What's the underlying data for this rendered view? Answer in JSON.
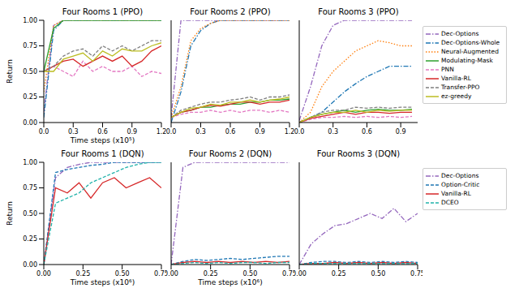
{
  "chart_data": [
    {
      "type": "line",
      "title": "Four Rooms 1 (PPO)",
      "x_label": "Time steps (x10⁵)",
      "y_label": "Return",
      "x": [
        0,
        0.1,
        0.2,
        0.3,
        0.4,
        0.5,
        0.6,
        0.7,
        0.8,
        0.9,
        1.0,
        1.1,
        1.2
      ],
      "xlim": [
        0,
        1.2
      ],
      "xticks": [
        {
          "value": 0,
          "label": "0.0"
        },
        0.3,
        0.6,
        0.9,
        1.2
      ],
      "ylim": [
        0,
        1
      ],
      "yticks": [
        {
          "value": 0,
          "label": "0.00"
        },
        0.25,
        {
          "value": 0.5,
          "label": "0.50"
        },
        0.75,
        {
          "value": 1,
          "label": "1.00"
        }
      ],
      "series": [
        {
          "name": "Dec-Options",
          "color": "#9467bd",
          "line_style": "dashdot",
          "values": [
            0.1,
            0.95,
            1,
            1,
            1,
            1,
            1,
            1,
            1,
            1,
            1,
            1,
            1
          ]
        },
        {
          "name": "Dec-Options-Whole",
          "color": "#1f77b4",
          "line_style": "dashdot",
          "values": [
            0.05,
            0.9,
            1,
            1,
            1,
            1,
            1,
            1,
            1,
            1,
            1,
            1,
            1
          ]
        },
        {
          "name": "Neural-Augmented",
          "color": "#ff7f0e",
          "line_style": "dotted",
          "values": [
            0.3,
            0.95,
            1,
            1,
            1,
            1,
            1,
            1,
            1,
            1,
            1,
            1,
            1
          ]
        },
        {
          "name": "Modulating-Mask",
          "color": "#2ca02c",
          "line_style": "solid",
          "values": [
            0.5,
            0.92,
            1,
            1,
            1,
            1,
            1,
            1,
            1,
            1,
            1,
            1,
            1
          ]
        },
        {
          "name": "PNN",
          "color": "#e377c2",
          "line_style": "dashed",
          "values": [
            0.5,
            0.55,
            0.5,
            0.45,
            0.6,
            0.5,
            0.55,
            0.5,
            0.5,
            0.55,
            0.45,
            0.5,
            0.48
          ]
        },
        {
          "name": "Vanilla-RL",
          "color": "#d62728",
          "line_style": "solid",
          "values": [
            0.5,
            0.55,
            0.6,
            0.62,
            0.55,
            0.6,
            0.65,
            0.6,
            0.65,
            0.55,
            0.6,
            0.7,
            0.75
          ]
        },
        {
          "name": "Transfer-PPO",
          "color": "#7f7f7f",
          "line_style": "dashed",
          "values": [
            0.5,
            0.55,
            0.65,
            0.7,
            0.72,
            0.65,
            0.75,
            0.7,
            0.75,
            0.7,
            0.75,
            0.8,
            0.8
          ]
        },
        {
          "name": "ez-greedy",
          "color": "#bcbd22",
          "line_style": "solid",
          "values": [
            0.5,
            0.5,
            0.62,
            0.65,
            0.68,
            0.6,
            0.7,
            0.65,
            0.72,
            0.7,
            0.7,
            0.75,
            0.78
          ]
        }
      ]
    },
    {
      "type": "line",
      "title": "Four Rooms 2 (PPO)",
      "tick_labels": "x",
      "x": [
        0,
        0.1,
        0.2,
        0.3,
        0.4,
        0.5,
        0.6,
        0.7,
        0.8,
        0.9,
        1.0,
        1.1,
        1.2
      ],
      "xlim": [
        0,
        1.2
      ],
      "xticks": [
        {
          "value": 0,
          "label": "0.0"
        },
        0.3,
        0.6,
        0.9,
        1.2
      ],
      "ylim": [
        0,
        1
      ],
      "yticks": [
        0,
        0.25,
        0.5,
        0.75,
        1
      ],
      "series": [
        {
          "name": "Dec-Options",
          "color": "#9467bd",
          "line_style": "dashdot",
          "values": [
            0.05,
            1,
            1,
            1,
            1,
            1,
            1,
            1,
            1,
            1,
            1,
            1,
            1
          ]
        },
        {
          "name": "Dec-Options-Whole",
          "color": "#1f77b4",
          "line_style": "dashdot",
          "values": [
            0,
            0.3,
            0.75,
            0.9,
            0.97,
            1,
            1,
            1,
            1,
            1,
            1,
            1,
            1
          ]
        },
        {
          "name": "Neural-Augmented",
          "color": "#ff7f0e",
          "line_style": "dotted",
          "values": [
            0.05,
            0.35,
            0.8,
            0.92,
            0.97,
            1,
            1,
            1,
            1,
            1,
            1,
            1,
            1
          ]
        },
        {
          "name": "Modulating-Mask",
          "color": "#2ca02c",
          "line_style": "solid",
          "values": [
            0.05,
            0.1,
            0.12,
            0.15,
            0.15,
            0.17,
            0.18,
            0.18,
            0.2,
            0.2,
            0.22,
            0.22,
            0.23
          ]
        },
        {
          "name": "PNN",
          "color": "#e377c2",
          "line_style": "dashed",
          "values": [
            0.05,
            0.08,
            0.1,
            0.1,
            0.12,
            0.1,
            0.12,
            0.1,
            0.12,
            0.12,
            0.1,
            0.12,
            0.1
          ]
        },
        {
          "name": "Vanilla-RL",
          "color": "#d62728",
          "line_style": "solid",
          "values": [
            0.05,
            0.1,
            0.12,
            0.15,
            0.17,
            0.16,
            0.18,
            0.2,
            0.2,
            0.18,
            0.2,
            0.2,
            0.22
          ]
        },
        {
          "name": "Transfer-PPO",
          "color": "#7f7f7f",
          "line_style": "dashed",
          "values": [
            0.05,
            0.12,
            0.15,
            0.18,
            0.2,
            0.2,
            0.22,
            0.23,
            0.25,
            0.22,
            0.25,
            0.25,
            0.27
          ]
        },
        {
          "name": "ez-greedy",
          "color": "#bcbd22",
          "line_style": "solid",
          "values": [
            0.05,
            0.1,
            0.14,
            0.15,
            0.18,
            0.17,
            0.2,
            0.2,
            0.22,
            0.2,
            0.22,
            0.23,
            0.25
          ]
        }
      ]
    },
    {
      "type": "line",
      "title": "Four Rooms 3 (PPO)",
      "tick_labels": "x",
      "legend": "right",
      "x": [
        0,
        0.1,
        0.2,
        0.3,
        0.4,
        0.5,
        0.6,
        0.7,
        0.8,
        0.9,
        1.0
      ],
      "xlim": [
        0,
        1.05
      ],
      "xticks": [
        {
          "value": 0,
          "label": "0.0"
        },
        0.3,
        0.6,
        0.9
      ],
      "ylim": [
        0,
        1
      ],
      "yticks": [
        0,
        0.25,
        0.5,
        0.75,
        1
      ],
      "series": [
        {
          "name": "Dec-Options",
          "color": "#9467bd",
          "line_style": "dashdot",
          "values": [
            0.02,
            0.35,
            0.75,
            0.95,
            1,
            1,
            1,
            1,
            1,
            1,
            1
          ]
        },
        {
          "name": "Dec-Options-Whole",
          "color": "#1f77b4",
          "line_style": "dashdot",
          "values": [
            0,
            0.05,
            0.1,
            0.2,
            0.3,
            0.38,
            0.45,
            0.5,
            0.55,
            0.55,
            0.55
          ]
        },
        {
          "name": "Neural-Augmented",
          "color": "#ff7f0e",
          "line_style": "dotted",
          "values": [
            0,
            0.1,
            0.35,
            0.5,
            0.6,
            0.7,
            0.75,
            0.8,
            0.78,
            0.75,
            0.75
          ]
        },
        {
          "name": "Modulating-Mask",
          "color": "#2ca02c",
          "line_style": "solid",
          "values": [
            0,
            0.05,
            0.08,
            0.1,
            0.12,
            0.1,
            0.12,
            0.13,
            0.12,
            0.12,
            0.13
          ]
        },
        {
          "name": "PNN",
          "color": "#e377c2",
          "line_style": "dashed",
          "values": [
            0,
            0.03,
            0.05,
            0.05,
            0.06,
            0.05,
            0.06,
            0.05,
            0.06,
            0.05,
            0.06
          ]
        },
        {
          "name": "Vanilla-RL",
          "color": "#d62728",
          "line_style": "solid",
          "values": [
            0,
            0.04,
            0.06,
            0.08,
            0.1,
            0.08,
            0.1,
            0.1,
            0.09,
            0.1,
            0.1
          ]
        },
        {
          "name": "Transfer-PPO",
          "color": "#7f7f7f",
          "line_style": "dashed",
          "values": [
            0,
            0.05,
            0.1,
            0.12,
            0.12,
            0.15,
            0.14,
            0.15,
            0.14,
            0.15,
            0.15
          ]
        },
        {
          "name": "ez-greedy",
          "color": "#bcbd22",
          "line_style": "solid",
          "values": [
            0,
            0.05,
            0.08,
            0.1,
            0.1,
            0.12,
            0.1,
            0.12,
            0.11,
            0.12,
            0.12
          ]
        }
      ]
    },
    {
      "type": "line",
      "title": "Four Rooms 1 (DQN)",
      "x_label": "Time steps (x10⁶)",
      "y_label": "Return",
      "x": [
        0,
        0.075,
        0.15,
        0.225,
        0.3,
        0.375,
        0.45,
        0.525,
        0.6,
        0.675,
        0.75
      ],
      "xlim": [
        0,
        0.75
      ],
      "xticks": [
        {
          "value": 0,
          "label": "0.00"
        },
        0.25,
        {
          "value": 0.5,
          "label": "0.50"
        },
        0.75
      ],
      "ylim": [
        0,
        1
      ],
      "yticks": [
        {
          "value": 0,
          "label": "0.00"
        },
        0.25,
        {
          "value": 0.5,
          "label": "0.50"
        },
        0.75,
        {
          "value": 1,
          "label": "1.00"
        }
      ],
      "series": [
        {
          "name": "Dec-Options",
          "color": "#9467bd",
          "line_style": "dashdot",
          "values": [
            0,
            0.85,
            0.95,
            0.98,
            1,
            1,
            1,
            1,
            1,
            1,
            1
          ]
        },
        {
          "name": "Option-Critic",
          "color": "#1f77b4",
          "line_style": "dashed",
          "values": [
            0,
            0.9,
            0.93,
            0.95,
            0.97,
            0.98,
            1,
            1,
            1,
            1,
            1
          ]
        },
        {
          "name": "Vanilla-RL",
          "color": "#d62728",
          "line_style": "solid",
          "values": [
            0,
            0.75,
            0.7,
            0.8,
            0.65,
            0.8,
            0.85,
            0.75,
            0.8,
            0.85,
            0.75
          ]
        },
        {
          "name": "DCEO",
          "color": "#20b2aa",
          "line_style": "dashed",
          "values": [
            0,
            0.6,
            0.65,
            0.7,
            0.8,
            0.85,
            0.9,
            0.95,
            0.98,
            1,
            1
          ]
        }
      ]
    },
    {
      "type": "line",
      "title": "Four Rooms 2 (DQN)",
      "x_label": "Time steps (x10⁶)",
      "tick_labels": "x",
      "x": [
        0,
        0.075,
        0.15,
        0.225,
        0.3,
        0.375,
        0.45,
        0.525,
        0.6,
        0.675,
        0.75
      ],
      "xlim": [
        0,
        0.75
      ],
      "xticks": [
        {
          "value": 0,
          "label": "0.00"
        },
        0.25,
        {
          "value": 0.5,
          "label": "0.50"
        },
        0.75
      ],
      "ylim": [
        0,
        1
      ],
      "yticks": [
        0,
        0.25,
        0.5,
        0.75,
        1
      ],
      "series": [
        {
          "name": "Dec-Options",
          "color": "#9467bd",
          "line_style": "dashdot",
          "values": [
            0,
            0.95,
            1,
            1,
            1,
            1,
            1,
            1,
            1,
            1,
            1
          ]
        },
        {
          "name": "Option-Critic",
          "color": "#1f77b4",
          "line_style": "dashed",
          "values": [
            0,
            0.03,
            0.05,
            0.04,
            0.05,
            0.06,
            0.05,
            0.06,
            0.07,
            0.08,
            0.08
          ]
        },
        {
          "name": "Vanilla-RL",
          "color": "#d62728",
          "line_style": "solid",
          "values": [
            0,
            0.02,
            0.03,
            0.02,
            0.03,
            0.02,
            0.03,
            0.02,
            0.03,
            0.02,
            0.03
          ]
        },
        {
          "name": "DCEO",
          "color": "#20b2aa",
          "line_style": "dashed",
          "values": [
            0,
            0.01,
            0.02,
            0.01,
            0.02,
            0.01,
            0.02,
            0.02,
            0.01,
            0.02,
            0.02
          ]
        }
      ]
    },
    {
      "type": "line",
      "title": "Four Rooms 3 (DQN)",
      "tick_labels": "x",
      "legend": "right",
      "x": [
        0,
        0.075,
        0.15,
        0.225,
        0.3,
        0.375,
        0.45,
        0.525,
        0.6,
        0.675,
        0.75
      ],
      "xlim": [
        0,
        0.75
      ],
      "xticks": [
        {
          "value": 0,
          "label": "0.00"
        },
        0.25,
        {
          "value": 0.5,
          "label": "0.50"
        },
        0.75
      ],
      "ylim": [
        0,
        1
      ],
      "yticks": [
        0,
        0.25,
        0.5,
        0.75,
        1
      ],
      "series": [
        {
          "name": "Dec-Options",
          "color": "#9467bd",
          "line_style": "dashdot",
          "values": [
            0,
            0.2,
            0.3,
            0.38,
            0.4,
            0.45,
            0.5,
            0.45,
            0.55,
            0.42,
            0.5
          ]
        },
        {
          "name": "Option-Critic",
          "color": "#1f77b4",
          "line_style": "dashed",
          "values": [
            0,
            0.02,
            0.03,
            0.03,
            0.02,
            0.03,
            0.02,
            0.03,
            0.02,
            0.03,
            0.02
          ]
        },
        {
          "name": "Vanilla-RL",
          "color": "#d62728",
          "line_style": "solid",
          "values": [
            0,
            0.01,
            0.01,
            0.02,
            0.01,
            0.02,
            0.01,
            0.02,
            0.01,
            0.02,
            0.01
          ]
        },
        {
          "name": "DCEO",
          "color": "#20b2aa",
          "line_style": "dashed",
          "values": [
            0,
            0.01,
            0.01,
            0.01,
            0.01,
            0.01,
            0.01,
            0.01,
            0.01,
            0.01,
            0.01
          ]
        }
      ]
    }
  ]
}
